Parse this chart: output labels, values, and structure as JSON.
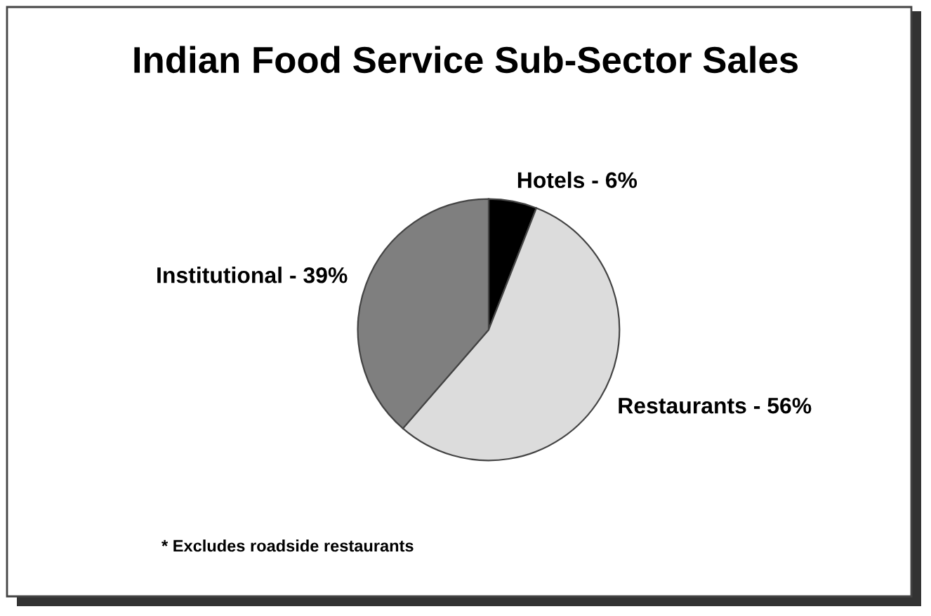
{
  "chart_data": {
    "type": "pie",
    "title": "Indian Food Service Sub-Sector Sales",
    "categories": [
      "Hotels - 6%",
      "Restaurants - 56%",
      "Institutional - 39%"
    ],
    "values": [
      6,
      56,
      39
    ],
    "colors": [
      "#000000",
      "#dcdcdc",
      "#7f7f7f"
    ],
    "annotations": [
      "* Excludes roadside restaurants"
    ]
  }
}
